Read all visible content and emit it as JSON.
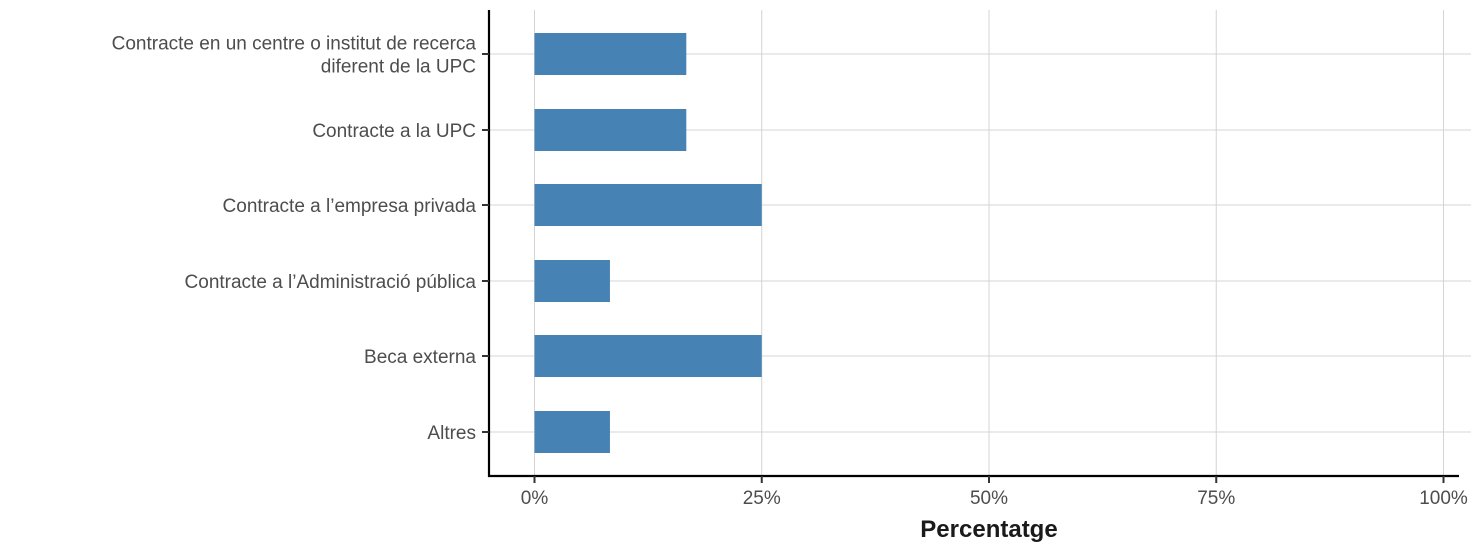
{
  "chart_data": {
    "type": "bar",
    "orientation": "horizontal",
    "categories": [
      [
        "Contracte en un centre o institut de recerca",
        "diferent de la UPC"
      ],
      [
        "Contracte a la UPC"
      ],
      [
        "Contracte a l’empresa privada"
      ],
      [
        "Contracte a l’Administració pública"
      ],
      [
        "Beca externa"
      ],
      [
        "Altres"
      ]
    ],
    "values": [
      16.7,
      16.7,
      25.0,
      8.3,
      25.0,
      8.3
    ],
    "xlabel": "Percentatge",
    "ylabel": "",
    "xlim": [
      0,
      100
    ],
    "xticks": [
      0,
      25,
      50,
      75,
      100
    ],
    "xtick_labels": [
      "0%",
      "25%",
      "50%",
      "75%",
      "100%"
    ],
    "grid": true,
    "bar_color": "#4682b4"
  }
}
